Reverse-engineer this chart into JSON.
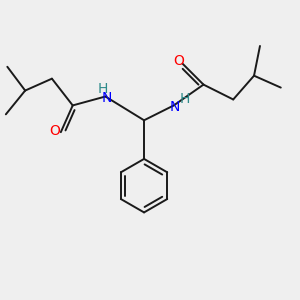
{
  "bg_color": "#efefef",
  "bond_color": "#1a1a1a",
  "N_color": "#0000ff",
  "O_color": "#ff0000",
  "H_color": "#2e8b8b",
  "line_width": 1.4,
  "font_size_atom": 10,
  "figsize": [
    3.0,
    3.0
  ],
  "dpi": 100,
  "xlim": [
    0,
    10
  ],
  "ylim": [
    0,
    10
  ]
}
